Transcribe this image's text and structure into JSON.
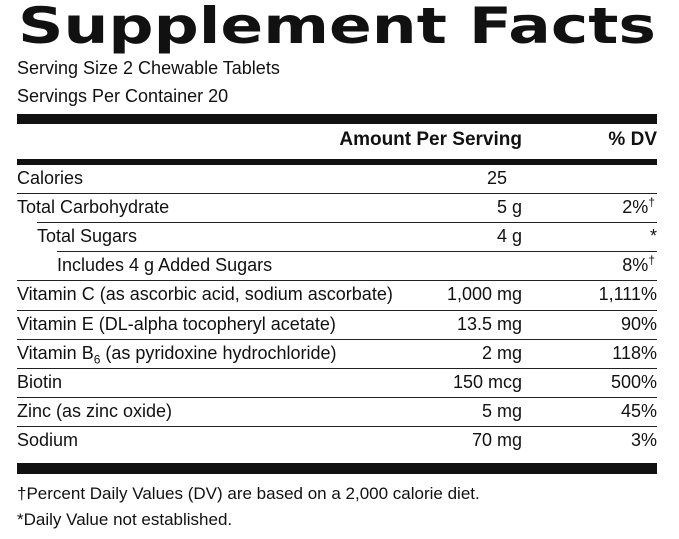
{
  "header": {
    "title": "Supplement Facts",
    "serving_size": "Serving Size 2 Chewable Tablets",
    "servings_per_container": "Servings Per Container 20"
  },
  "table": {
    "columns": [
      "Amount Per Serving",
      "% DV"
    ],
    "rows": [
      {
        "name": "Calories",
        "amount": "25"
      },
      {
        "name": "Total Carbohydrate",
        "amount": "5 g",
        "dv": "2%",
        "dv_mark": "†"
      },
      {
        "name": "Total Sugars",
        "amount": "4 g",
        "dv": "*"
      },
      {
        "name": "Includes 4 g Added Sugars",
        "dv": "8%",
        "dv_mark": "†"
      },
      {
        "name": "Vitamin C (as ascorbic acid, sodium ascorbate)",
        "amount": "1,000 mg",
        "dv": "1,111%"
      },
      {
        "name": "Vitamin E (DL-alpha tocopheryl acetate)",
        "amount": "13.5 mg",
        "dv": "90%"
      },
      {
        "name": "Vitamin B",
        "name_sub": "6",
        "name_rest": " (as pyridoxine hydrochloride)",
        "amount": "2 mg",
        "dv": "118%"
      },
      {
        "name": "Biotin",
        "amount": "150 mcg",
        "dv": "500%"
      },
      {
        "name": "Zinc (as zinc oxide)",
        "amount": "5 mg",
        "dv": "45%"
      },
      {
        "name": "Sodium",
        "amount": "70 mg",
        "dv": "3%"
      }
    ]
  },
  "footnotes": [
    "†Percent Daily Values (DV) are based on a 2,000 calorie diet.",
    "*Daily Value not established."
  ]
}
